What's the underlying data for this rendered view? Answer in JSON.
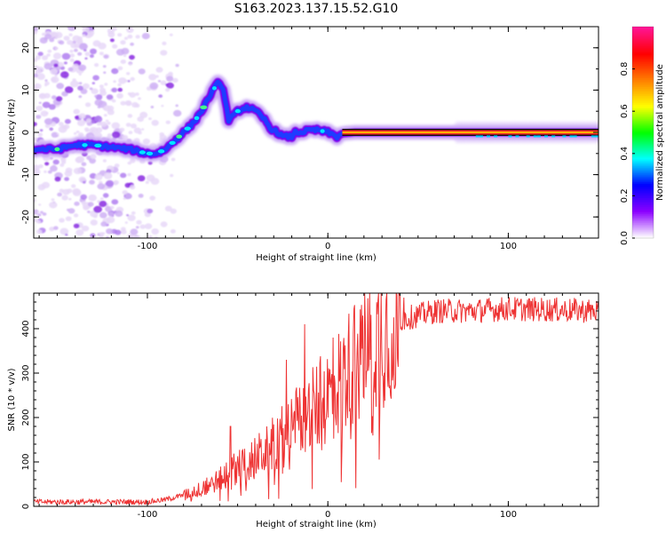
{
  "title": "S163.2023.137.15.52.G10",
  "chart_data": [
    {
      "type": "heatmap",
      "name": "spectrogram",
      "xlabel": "Height of straight line (km)",
      "ylabel": "Frequency (Hz)",
      "xlim": [
        -163,
        150
      ],
      "ylim": [
        -25,
        25
      ],
      "xticks": [
        -100,
        0,
        100
      ],
      "yticks": [
        -20,
        -10,
        0,
        10,
        20
      ],
      "colorbar": {
        "label": "Normalized spectral amplitude",
        "range": [
          0,
          1
        ],
        "ticks": [
          0.0,
          0.2,
          0.4,
          0.6,
          0.8
        ],
        "colors": [
          "#ffffff",
          "#8b00ff",
          "#0000ff",
          "#00ffff",
          "#00ff00",
          "#ffff00",
          "#ff7f00",
          "#ff0000",
          "#ff1493"
        ]
      },
      "ridge": {
        "x": [
          -163,
          -150,
          -140,
          -130,
          -120,
          -110,
          -100,
          -95,
          -90,
          -85,
          -80,
          -75,
          -70,
          -65,
          -62,
          -60,
          -58,
          -55,
          -52,
          -50,
          -45,
          -40,
          -35,
          -32,
          -30,
          -28,
          -25,
          -22,
          -20,
          -18,
          -15,
          -10,
          -5,
          0,
          5,
          8,
          15,
          50,
          100,
          150
        ],
        "y": [
          -4,
          -4,
          -3,
          -3,
          -3.5,
          -4,
          -5,
          -5,
          -4,
          -2,
          0,
          2,
          5,
          9,
          11,
          12,
          10,
          3,
          4,
          5,
          6,
          5,
          3,
          1,
          0.5,
          0,
          -1,
          -1,
          -1,
          0,
          0,
          0.5,
          0.5,
          0,
          -1,
          -0.3,
          0,
          0,
          0,
          0
        ]
      }
    },
    {
      "type": "line",
      "name": "snr",
      "xlabel": "Height of straight line (km)",
      "ylabel": "SNR (10 * v/v)",
      "xlim": [
        -163,
        150
      ],
      "ylim": [
        0,
        480
      ],
      "xticks": [
        -100,
        0,
        100
      ],
      "yticks": [
        0,
        100,
        200,
        300,
        400
      ],
      "color": "#ee3333",
      "envelope": {
        "x": [
          -163,
          -100,
          -90,
          -80,
          -70,
          -60,
          -50,
          -40,
          -30,
          -20,
          -10,
          0,
          10,
          20,
          30,
          40,
          50,
          60,
          80,
          100,
          150
        ],
        "y": [
          10,
          10,
          15,
          25,
          40,
          60,
          90,
          110,
          140,
          180,
          210,
          250,
          300,
          350,
          390,
          420,
          430,
          440,
          440,
          445,
          440
        ]
      },
      "spikes": [
        {
          "x": -54,
          "y": 180
        },
        {
          "x": -34,
          "y": 180
        },
        {
          "x": -23,
          "y": 330
        },
        {
          "x": -13,
          "y": 410
        },
        {
          "x": 3,
          "y": 380
        },
        {
          "x": 14,
          "y": 390
        },
        {
          "x": 42,
          "y": 470
        }
      ]
    }
  ]
}
